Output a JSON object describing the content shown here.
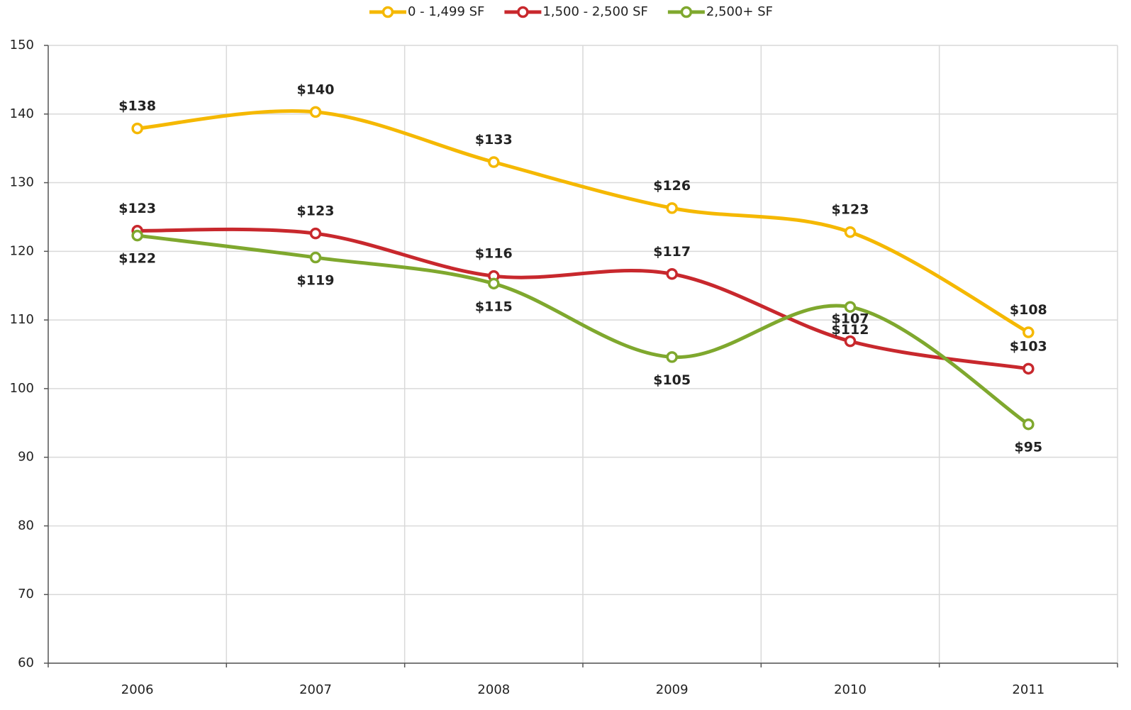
{
  "chart_data": {
    "type": "line",
    "categories": [
      "2006",
      "2007",
      "2008",
      "2009",
      "2010",
      "2011"
    ],
    "series": [
      {
        "name": "0 - 1,499 SF",
        "color": "#f5b800",
        "values": [
          137.9,
          140.3,
          133.0,
          126.3,
          122.8,
          108.2
        ],
        "value_labels": [
          "$138",
          "$140",
          "$133",
          "$126",
          "$123",
          "$108"
        ]
      },
      {
        "name": "1,500 - 2,500 SF",
        "color": "#c8282d",
        "values": [
          123.0,
          122.6,
          116.4,
          116.7,
          106.9,
          102.9
        ],
        "value_labels": [
          "$123",
          "$123",
          "$116",
          "$117",
          "$107",
          "$103"
        ]
      },
      {
        "name": "2,500+ SF",
        "color": "#7fa82e",
        "values": [
          122.3,
          119.1,
          115.3,
          104.6,
          111.9,
          94.8
        ],
        "value_labels": [
          "$122",
          "$119",
          "$115",
          "$105",
          "$112",
          "$95"
        ]
      }
    ],
    "ylim": [
      60,
      150
    ],
    "yticks": [
      60,
      70,
      80,
      90,
      100,
      110,
      120,
      130,
      140,
      150
    ],
    "grid": true,
    "legend": "top"
  }
}
